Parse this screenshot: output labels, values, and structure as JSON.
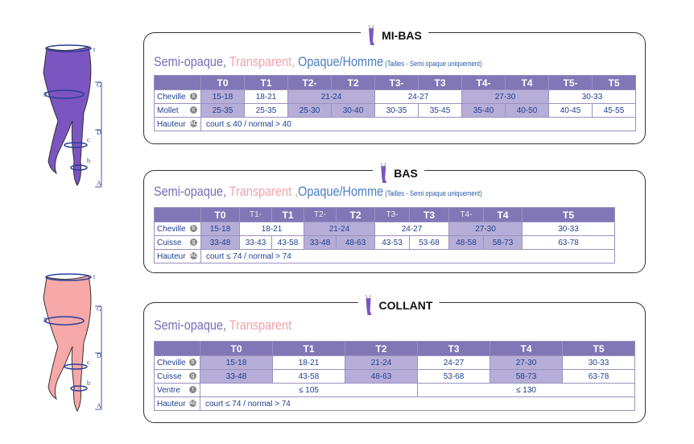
{
  "colors": {
    "header": "#8176b6",
    "highlight": "#b6aed8",
    "semi_opaque": "#7a6bb8",
    "transparent": "#f4a0a8",
    "opaque": "#4a7ec0"
  },
  "diagram_letters": [
    "t",
    "g",
    "G",
    "D",
    "c",
    "b",
    "A"
  ],
  "sections": [
    {
      "title": "MI-BAS",
      "heading": {
        "semi": "Semi-opaque,",
        "transparent": " Transparent,",
        "opaque": " Opaque/Homme",
        "note": " (Tailles - Semi opaque uniquement)"
      },
      "headers": [
        {
          "v": "T0"
        },
        {
          "v": "T1"
        },
        {
          "v": "T2-"
        },
        {
          "v": "T2"
        },
        {
          "v": "T3-"
        },
        {
          "v": "T3"
        },
        {
          "v": "T4-"
        },
        {
          "v": "T4"
        },
        {
          "v": "T5-"
        },
        {
          "v": "T5"
        }
      ],
      "rows": [
        {
          "label": "Cheville",
          "badge": "b",
          "cells": [
            {
              "v": "15-18",
              "hl": true
            },
            {
              "v": "18-21"
            },
            {
              "v": "21-24",
              "span": 2,
              "hl": true
            },
            {
              "v": "24-27",
              "span": 2
            },
            {
              "v": "27-30",
              "span": 2,
              "hl": true
            },
            {
              "v": "30-33",
              "span": 2
            }
          ]
        },
        {
          "label": "Mollet",
          "badge": "c",
          "cells": [
            {
              "v": "25-35",
              "hl": true
            },
            {
              "v": "25-35"
            },
            {
              "v": "25-30",
              "hl": true
            },
            {
              "v": "30-40",
              "hl": true
            },
            {
              "v": "30-35"
            },
            {
              "v": "35-45"
            },
            {
              "v": "35-40",
              "hl": true
            },
            {
              "v": "40-50",
              "hl": true
            },
            {
              "v": "40-45"
            },
            {
              "v": "45-55"
            }
          ]
        },
        {
          "label": "Hauteur",
          "badge": "AD",
          "cells": [
            {
              "v": "court ≤ 40 / normal > 40",
              "span": 10,
              "left": true
            }
          ]
        }
      ]
    },
    {
      "title": "BAS",
      "heading": {
        "semi": "Semi-opaque,",
        "transparent": " Transparent ,",
        "opaque": "Opaque/Homme",
        "note": " (Tailles - Semi opaque uniquement)"
      },
      "headers": [
        {
          "v": "T0"
        },
        {
          "v": "T1-",
          "minor": true
        },
        {
          "v": "T1"
        },
        {
          "v": "T2-",
          "minor": true
        },
        {
          "v": "T2"
        },
        {
          "v": "T3-",
          "minor": true
        },
        {
          "v": "T3"
        },
        {
          "v": "T4-",
          "minor": true
        },
        {
          "v": "T4"
        },
        {
          "v": "T5"
        }
      ],
      "rows": [
        {
          "label": "Cheville",
          "badge": "b",
          "cells": [
            {
              "v": "15-18",
              "hl": true
            },
            {
              "v": "18-21",
              "span": 2
            },
            {
              "v": "21-24",
              "span": 2,
              "hl": true
            },
            {
              "v": "24-27",
              "span": 2
            },
            {
              "v": "27-30",
              "span": 2,
              "hl": true
            },
            {
              "v": "30-33"
            }
          ]
        },
        {
          "label": "Cuisse",
          "badge": "g",
          "cells": [
            {
              "v": "33-48",
              "hl": true
            },
            {
              "v": "33-43"
            },
            {
              "v": "43-58"
            },
            {
              "v": "33-48",
              "hl": true
            },
            {
              "v": "48-63",
              "hl": true
            },
            {
              "v": "43-53"
            },
            {
              "v": "53-68"
            },
            {
              "v": "48-58",
              "hl": true
            },
            {
              "v": "58-73",
              "hl": true
            },
            {
              "v": "63-78"
            }
          ]
        },
        {
          "label": "Hauteur",
          "badge": "AG",
          "cells": [
            {
              "v": "court ≤ 74 / normal > 74",
              "span": 10,
              "left": true
            }
          ]
        }
      ]
    },
    {
      "title": "COLLANT",
      "heading": {
        "semi": "Semi-opaque,",
        "transparent": " Transparent",
        "opaque": "",
        "note": ""
      },
      "headers": [
        {
          "v": "T0"
        },
        {
          "v": "T1"
        },
        {
          "v": "T2"
        },
        {
          "v": "T3"
        },
        {
          "v": "T4"
        },
        {
          "v": "T5"
        }
      ],
      "rows": [
        {
          "label": "Cheville",
          "badge": "b",
          "cells": [
            {
              "v": "15-18",
              "hl": true
            },
            {
              "v": "18-21"
            },
            {
              "v": "21-24",
              "hl": true
            },
            {
              "v": "24-27"
            },
            {
              "v": "27-30",
              "hl": true
            },
            {
              "v": "30-33"
            }
          ]
        },
        {
          "label": "Cuisse",
          "badge": "g",
          "cells": [
            {
              "v": "33-48",
              "hl": true
            },
            {
              "v": "43-58"
            },
            {
              "v": "48-63",
              "hl": true
            },
            {
              "v": "53-68"
            },
            {
              "v": "58-73",
              "hl": true
            },
            {
              "v": "63-78"
            }
          ]
        },
        {
          "label": "Ventre",
          "badge": "t",
          "cells": [
            {
              "v": "≤ 105",
              "span": 3
            },
            {
              "v": "≤ 130",
              "span": 3
            }
          ]
        },
        {
          "label": "Hauteur",
          "badge": "AG",
          "cells": [
            {
              "v": "court ≤ 74 / normal > 74",
              "span": 6,
              "left": true
            }
          ]
        }
      ]
    }
  ]
}
